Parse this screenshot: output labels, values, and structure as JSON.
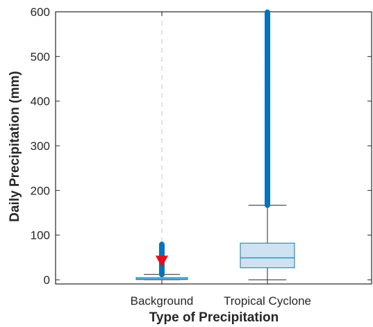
{
  "chart_data": {
    "type": "box",
    "xlabel": "Type of Precipitation",
    "ylabel": "Daily Precipitation (mm)",
    "ylim": [
      0,
      600
    ],
    "yticks": [
      0,
      100,
      200,
      300,
      400,
      500,
      600
    ],
    "categories": [
      "Background",
      "Tropical Cyclone"
    ],
    "boxes": [
      {
        "category": "Background",
        "q1": 0.5,
        "median": 2,
        "q3": 5,
        "whisker_low": 0,
        "whisker_high": 12,
        "outliers_from": 12,
        "outliers_to": 80,
        "marker_value": 40
      },
      {
        "category": "Tropical Cyclone",
        "q1": 27,
        "median": 49,
        "q3": 82,
        "whisker_low": 0,
        "whisker_high": 167,
        "outliers_from": 167,
        "outliers_to": 600
      }
    ],
    "colors": {
      "box_fill": "#cde3f1",
      "box_edge": "#2b8cc4",
      "outlier": "#0a72ba",
      "marker": "#e0101f",
      "axis": "#262626",
      "dashed_line": "#d9d9d9"
    }
  }
}
